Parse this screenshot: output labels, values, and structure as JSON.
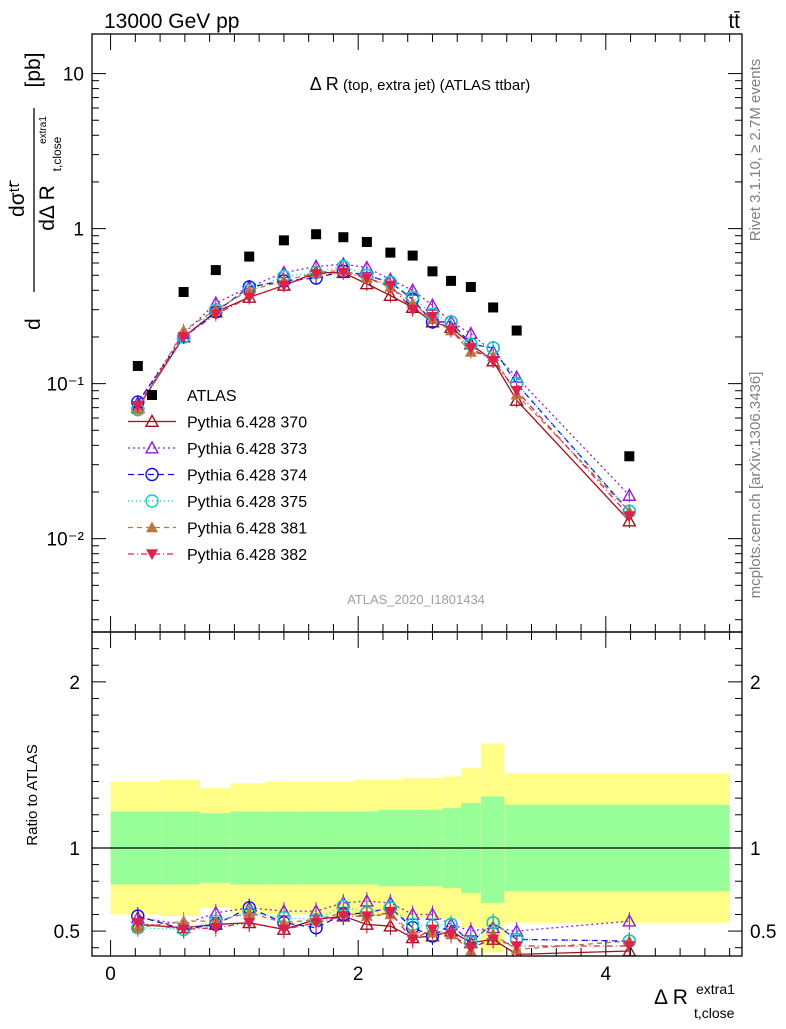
{
  "header": {
    "left": "13000 GeV pp",
    "right": "tt̄"
  },
  "side_labels": {
    "rivet": "Rivet 3.1.10, ≥ 2.7M events",
    "mcplots": "mcplots.cern.ch [arXiv:1306.3436]"
  },
  "chart_data": [
    {
      "type": "scatter",
      "title_main": "Δ R",
      "title_sub": " (top, extra jet) (ATLAS ttbar)",
      "analysis_id": "ATLAS_2020_I1801434",
      "ylabel_top": "dσᵗᵗ̄",
      "ylabel_bottom": "dΔ R",
      "ylabel_sub": "t,close",
      "ylabel_sup": "extra1",
      "ylabel_unit": "[pb]",
      "yscale": "log",
      "ylim": [
        0.0025,
        18
      ],
      "xlim": [
        -0.15,
        5.1
      ],
      "y_ticks": [
        "10⁻²",
        "10⁻¹",
        "1",
        "10"
      ],
      "x": [
        0.22,
        0.59,
        0.85,
        1.12,
        1.4,
        1.66,
        1.88,
        2.07,
        2.26,
        2.44,
        2.6,
        2.75,
        2.91,
        3.09,
        3.28,
        4.19
      ],
      "series": [
        {
          "name": "ATLAS",
          "color": "#000000",
          "marker": "square",
          "values": [
            0.13,
            0.39,
            0.54,
            0.66,
            0.84,
            0.92,
            0.88,
            0.82,
            0.7,
            0.67,
            0.53,
            0.46,
            0.42,
            0.31,
            0.22,
            0.034
          ]
        },
        {
          "name": "Pythia 6.428 370",
          "color": "#a0101c",
          "marker": "triangle-open",
          "dash": "",
          "values": [
            0.07,
            0.2,
            0.29,
            0.36,
            0.43,
            0.52,
            0.52,
            0.44,
            0.37,
            0.31,
            0.25,
            0.23,
            0.18,
            0.14,
            0.078,
            0.013
          ]
        },
        {
          "name": "Pythia 6.428 373",
          "color": "#9020d0",
          "marker": "triangle-open",
          "dash": "2,3",
          "values": [
            0.075,
            0.21,
            0.33,
            0.42,
            0.52,
            0.57,
            0.59,
            0.56,
            0.47,
            0.4,
            0.32,
            0.25,
            0.21,
            0.16,
            0.11,
            0.019
          ]
        },
        {
          "name": "Pythia 6.428 374",
          "color": "#1010e0",
          "marker": "circle-open",
          "dash": "6,4",
          "values": [
            0.076,
            0.2,
            0.29,
            0.42,
            0.46,
            0.48,
            0.53,
            0.5,
            0.45,
            0.35,
            0.25,
            0.25,
            0.18,
            0.17,
            0.1,
            0.015
          ]
        },
        {
          "name": "Pythia 6.428 375",
          "color": "#10d0c0",
          "marker": "circle-open",
          "dash": "1,3",
          "values": [
            0.068,
            0.2,
            0.3,
            0.4,
            0.49,
            0.52,
            0.57,
            0.5,
            0.45,
            0.36,
            0.28,
            0.25,
            0.18,
            0.17,
            0.1,
            0.015
          ]
        },
        {
          "name": "Pythia 6.428 381",
          "color": "#b87840",
          "marker": "triangle-filled",
          "dash": "5,4",
          "values": [
            0.068,
            0.22,
            0.3,
            0.4,
            0.46,
            0.52,
            0.54,
            0.48,
            0.42,
            0.33,
            0.26,
            0.22,
            0.16,
            0.15,
            0.085,
            0.015
          ]
        },
        {
          "name": "Pythia 6.428 382",
          "color": "#e0204c",
          "marker": "triangle-down-filled",
          "dash": "6,3,1,3",
          "values": [
            0.072,
            0.2,
            0.28,
            0.36,
            0.43,
            0.51,
            0.52,
            0.48,
            0.43,
            0.3,
            0.27,
            0.22,
            0.17,
            0.14,
            0.09,
            0.014
          ]
        }
      ]
    },
    {
      "type": "scatter",
      "ylabel": "Ratio to ATLAS",
      "xlabel": "Δ R",
      "xlabel_sub": "t,close",
      "xlabel_sup": "extra1",
      "ylim": [
        0.35,
        2.3
      ],
      "xlim": [
        -0.15,
        5.1
      ],
      "y_ticks": [
        "0.5",
        "1",
        "2"
      ],
      "x_ticks": [
        "0",
        "2",
        "4"
      ],
      "band_edges": [
        0.0,
        0.4,
        0.72,
        0.97,
        1.25,
        1.54,
        1.78,
        1.97,
        2.16,
        2.35,
        2.53,
        2.68,
        2.83,
        2.99,
        3.18,
        3.38,
        5.0
      ],
      "band_inner_up": [
        1.22,
        1.22,
        1.21,
        1.22,
        1.22,
        1.22,
        1.22,
        1.22,
        1.23,
        1.23,
        1.23,
        1.24,
        1.27,
        1.31,
        1.26,
        1.26
      ],
      "band_inner_low": [
        0.78,
        0.78,
        0.79,
        0.78,
        0.78,
        0.78,
        0.78,
        0.78,
        0.77,
        0.77,
        0.77,
        0.76,
        0.73,
        0.67,
        0.74,
        0.74
      ],
      "band_outer_up": [
        1.4,
        1.41,
        1.36,
        1.39,
        1.4,
        1.4,
        1.4,
        1.41,
        1.41,
        1.42,
        1.42,
        1.43,
        1.48,
        1.63,
        1.45,
        1.45
      ],
      "band_outer_low": [
        0.6,
        0.59,
        0.64,
        0.61,
        0.6,
        0.6,
        0.6,
        0.59,
        0.59,
        0.58,
        0.58,
        0.57,
        0.52,
        0.37,
        0.55,
        0.55
      ],
      "band_colors": {
        "inner": "#99ff99",
        "outer": "#ffff88"
      },
      "series": [
        {
          "name": "Pythia 6.428 370",
          "values": [
            0.54,
            0.52,
            0.54,
            0.55,
            0.51,
            0.57,
            0.59,
            0.54,
            0.53,
            0.46,
            0.47,
            0.5,
            0.43,
            0.45,
            0.36,
            0.38
          ]
        },
        {
          "name": "Pythia 6.428 373",
          "values": [
            0.58,
            0.54,
            0.61,
            0.64,
            0.62,
            0.62,
            0.67,
            0.68,
            0.67,
            0.6,
            0.6,
            0.54,
            0.5,
            0.52,
            0.5,
            0.56
          ]
        },
        {
          "name": "Pythia 6.428 374",
          "values": [
            0.59,
            0.51,
            0.54,
            0.64,
            0.55,
            0.52,
            0.6,
            0.61,
            0.64,
            0.52,
            0.47,
            0.54,
            0.43,
            0.55,
            0.45,
            0.44
          ]
        },
        {
          "name": "Pythia 6.428 375",
          "values": [
            0.52,
            0.51,
            0.56,
            0.61,
            0.58,
            0.57,
            0.65,
            0.61,
            0.64,
            0.54,
            0.53,
            0.54,
            0.43,
            0.55,
            0.45,
            0.44
          ]
        },
        {
          "name": "Pythia 6.428 381",
          "values": [
            0.52,
            0.56,
            0.56,
            0.61,
            0.55,
            0.57,
            0.61,
            0.59,
            0.6,
            0.49,
            0.49,
            0.48,
            0.38,
            0.48,
            0.39,
            0.44
          ]
        },
        {
          "name": "Pythia 6.428 382",
          "values": [
            0.55,
            0.51,
            0.52,
            0.55,
            0.51,
            0.55,
            0.59,
            0.59,
            0.61,
            0.45,
            0.51,
            0.48,
            0.4,
            0.45,
            0.41,
            0.41
          ]
        }
      ]
    }
  ]
}
